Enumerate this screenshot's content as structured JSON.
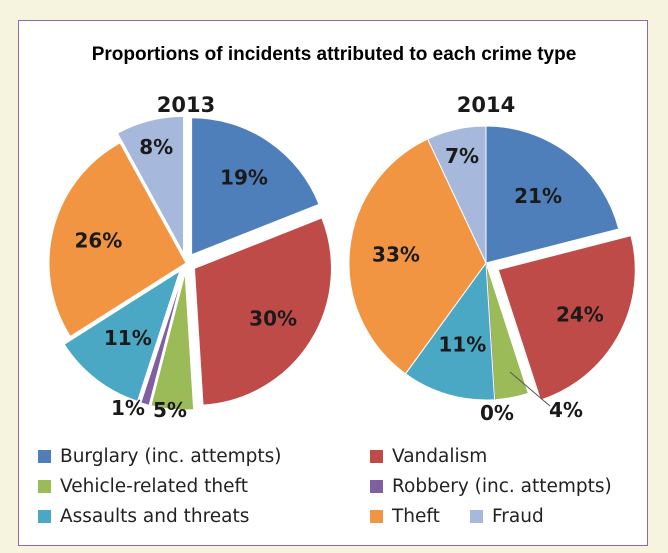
{
  "chart_data": {
    "type": "pie",
    "title": "Proportions of incidents attributed to each crime type",
    "categories": [
      "Burglary (inc. attempts)",
      "Vandalism",
      "Vehicle-related theft",
      "Robbery (inc. attempts)",
      "Assaults and threats",
      "Theft",
      "Fraud"
    ],
    "colors": [
      "#4f7fbb",
      "#bf4b48",
      "#9bbb59",
      "#7f5fa0",
      "#4aa8c4",
      "#f29543",
      "#a6b8db"
    ],
    "series": [
      {
        "name": "2013",
        "values": [
          19,
          30,
          5,
          1,
          11,
          26,
          8
        ],
        "labels": [
          "19%",
          "30%",
          "5%",
          "1%",
          "11%",
          "26%",
          "8%"
        ]
      },
      {
        "name": "2014",
        "values": [
          21,
          24,
          4,
          0,
          11,
          33,
          7
        ],
        "labels": [
          "21%",
          "24%",
          "4%",
          "0%",
          "11%",
          "33%",
          "7%"
        ]
      }
    ]
  }
}
